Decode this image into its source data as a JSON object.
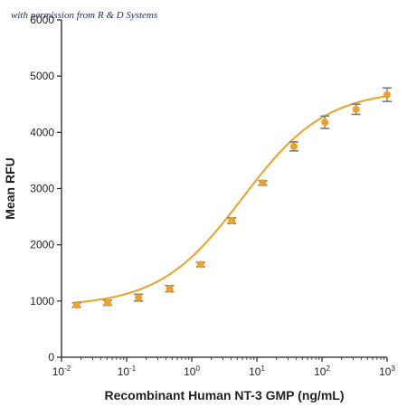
{
  "watermark": "with permission from R & D Systems",
  "chart_data": {
    "type": "scatter",
    "xlabel": "Recombinant Human NT-3 GMP (ng/mL)",
    "ylabel": "Mean RFU",
    "x_scale": "log",
    "xlim": [
      0.01,
      1000
    ],
    "ylim": [
      0,
      6000
    ],
    "grid": false,
    "legend": "none",
    "x_ticks": [
      {
        "base": "10",
        "exp": "-2"
      },
      {
        "base": "10",
        "exp": "-1"
      },
      {
        "base": "10",
        "exp": "0"
      },
      {
        "base": "10",
        "exp": "1"
      },
      {
        "base": "10",
        "exp": "2"
      },
      {
        "base": "10",
        "exp": "3"
      }
    ],
    "y_ticks": [
      "0",
      "1000",
      "2000",
      "3000",
      "4000",
      "5000",
      "6000"
    ],
    "series": [
      {
        "x": [
          0.017,
          0.051,
          0.152,
          0.457,
          1.37,
          4.12,
          12.3,
          37.0,
          111,
          333,
          1000
        ],
        "y": [
          930,
          970,
          1060,
          1220,
          1650,
          2430,
          3100,
          3750,
          4180,
          4410,
          4670
        ],
        "error": [
          40,
          45,
          60,
          55,
          40,
          50,
          40,
          80,
          110,
          90,
          120
        ],
        "color": "#f0a024",
        "error_color": "#7a7a7a"
      }
    ],
    "fit_curve": {
      "bottom": 905,
      "top": 4760,
      "ec50": 6.0,
      "hill": 0.68,
      "color": "#f0a024"
    }
  }
}
